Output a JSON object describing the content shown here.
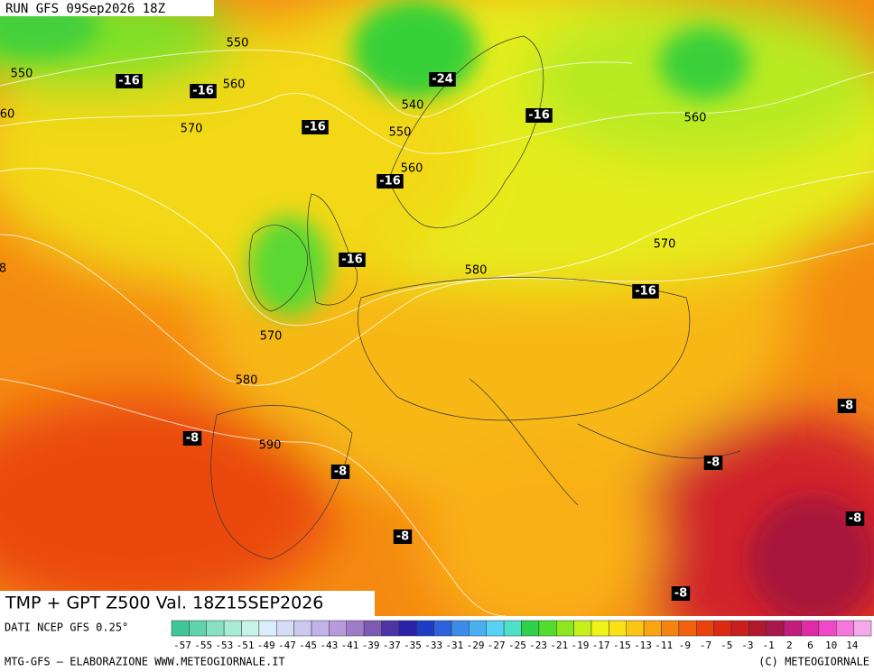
{
  "header": {
    "run": "RUN GFS 09Sep2026 18Z"
  },
  "map": {
    "contour_labels": [
      "550",
      "550",
      "560",
      "60",
      "570",
      "540",
      "550",
      "560",
      "560",
      "570",
      "580",
      "570",
      "580",
      "590",
      "8"
    ],
    "temperature_labels": [
      "-16",
      "-16",
      "-24",
      "-16",
      "-16",
      "-16",
      "-16",
      "-16",
      "-8",
      "-8",
      "-8",
      "-8",
      "-8",
      "-8",
      "-8"
    ]
  },
  "title": "TMP + GPT Z500 Val. 18Z15SEP2026",
  "source": "DATI NCEP GFS 0.25°",
  "colorbar": {
    "labels": [
      "-57",
      "-55",
      "-53",
      "-51",
      "-49",
      "-47",
      "-45",
      "-43",
      "-41",
      "-39",
      "-37",
      "-35",
      "-33",
      "-31",
      "-29",
      "-27",
      "-25",
      "-23",
      "-21",
      "-19",
      "-17",
      "-15",
      "-13",
      "-11",
      "-9",
      "-7",
      "-5",
      "-3",
      "-1",
      "2",
      "6",
      "10",
      "14"
    ],
    "colors": [
      "#3fc79a",
      "#5fd3ab",
      "#86e0c1",
      "#a9ecd6",
      "#c5f3e6",
      "#d9eefa",
      "#d5dcf4",
      "#ccc8ee",
      "#c2b3e6",
      "#b79bdc",
      "#a07bc8",
      "#7e5ab4",
      "#4c34a6",
      "#2a22a8",
      "#1f3cc4",
      "#2d62dc",
      "#3d8bea",
      "#49b0f2",
      "#57d2f4",
      "#4fe0c8",
      "#30d04a",
      "#52dc2c",
      "#8ee61e",
      "#c6f01a",
      "#eef418",
      "#fbe118",
      "#fbc514",
      "#f9a512",
      "#f58410",
      "#f0620f",
      "#e8420f",
      "#dc2a12",
      "#c81e1e",
      "#b0182c",
      "#a8184a",
      "#c01e7a",
      "#de2ca8",
      "#f048c8",
      "#f478dc",
      "#f6a8ec"
    ]
  },
  "footer": {
    "left": "MTG-GFS – ELABORAZIONE WWW.METEOGIORNALE.IT",
    "right": "(C) METEOGIORNALE"
  }
}
